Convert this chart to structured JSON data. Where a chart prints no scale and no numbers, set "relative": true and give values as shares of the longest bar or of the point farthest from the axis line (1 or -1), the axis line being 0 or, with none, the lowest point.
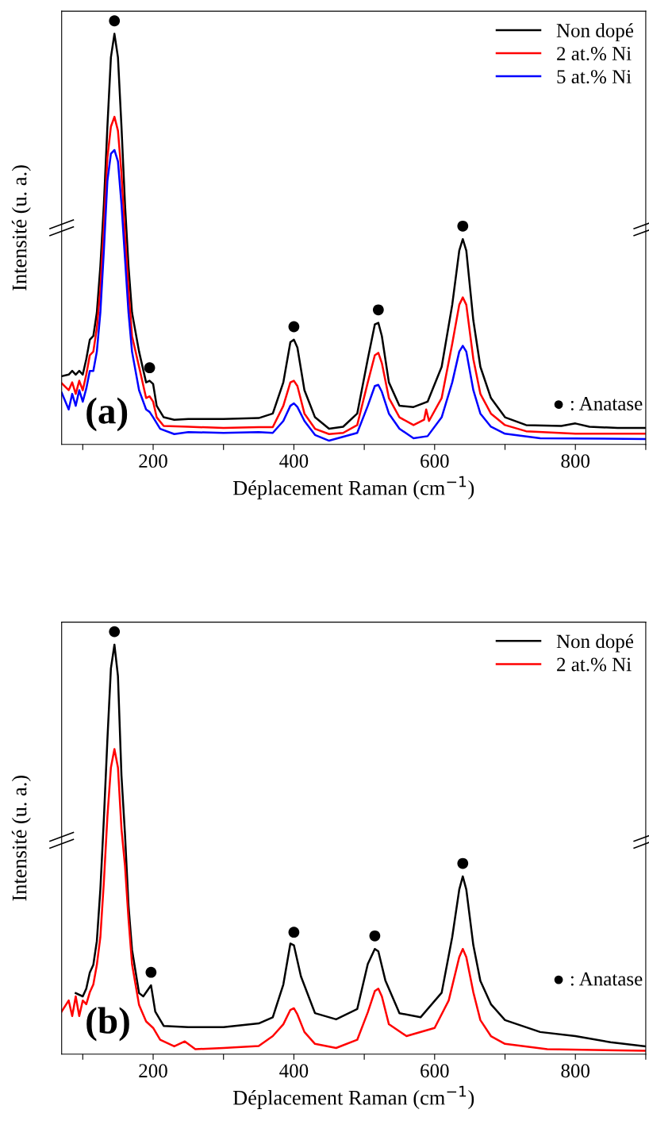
{
  "chart_data": [
    {
      "type": "line",
      "relative": true,
      "xlabel": "Déplacement Raman (cm$^{−1}$)",
      "ylabel": "Intensité (u. a.)",
      "xlim": [
        70,
        900
      ],
      "xticks": [
        {
          "value": 100,
          "label": null
        },
        200,
        {
          "value": 300,
          "label": null
        },
        400,
        {
          "value": 500,
          "label": null
        },
        600,
        {
          "value": 700,
          "label": null
        },
        800,
        {
          "value": 900,
          "label": null
        }
      ],
      "tick_labels": "x",
      "legend": "top right",
      "grid": false,
      "annotations": [
        "(a)",
        "● : Anatase",
        {
          "text": "●",
          "x": 145,
          "y": 1.0
        },
        {
          "text": "●",
          "x": 195,
          "y": 0.155
        },
        {
          "text": "●",
          "x": 400,
          "y": 0.255
        },
        {
          "text": "●",
          "x": 520,
          "y": 0.296
        },
        {
          "text": "●",
          "x": 640,
          "y": 0.5
        }
      ],
      "series": [
        {
          "name": "Non dopé",
          "color": "#000000",
          "x": [
            70,
            80,
            85,
            90,
            95,
            100,
            105,
            110,
            115,
            120,
            125,
            130,
            135,
            140,
            145,
            150,
            155,
            160,
            165,
            170,
            180,
            190,
            195,
            200,
            205,
            215,
            230,
            250,
            300,
            350,
            370,
            385,
            395,
            400,
            405,
            415,
            430,
            450,
            470,
            490,
            505,
            515,
            520,
            525,
            535,
            550,
            570,
            590,
            610,
            625,
            635,
            640,
            645,
            655,
            665,
            680,
            700,
            730,
            780,
            800,
            820,
            860,
            900
          ],
          "values": [
            0.166,
            0.17,
            0.179,
            0.17,
            0.179,
            0.17,
            0.208,
            0.255,
            0.264,
            0.321,
            0.434,
            0.585,
            0.774,
            0.943,
            1.0,
            0.943,
            0.774,
            0.585,
            0.434,
            0.321,
            0.226,
            0.151,
            0.155,
            0.147,
            0.094,
            0.066,
            0.06,
            0.062,
            0.062,
            0.064,
            0.075,
            0.151,
            0.249,
            0.255,
            0.236,
            0.132,
            0.066,
            0.038,
            0.043,
            0.075,
            0.208,
            0.292,
            0.296,
            0.264,
            0.151,
            0.094,
            0.091,
            0.104,
            0.189,
            0.34,
            0.472,
            0.5,
            0.472,
            0.302,
            0.189,
            0.113,
            0.066,
            0.047,
            0.045,
            0.051,
            0.043,
            0.04,
            0.04
          ]
        },
        {
          "name": "2 at.% Ni",
          "color": "#ff0000",
          "x": [
            70,
            80,
            85,
            90,
            95,
            100,
            105,
            110,
            115,
            120,
            125,
            130,
            135,
            140,
            145,
            150,
            155,
            160,
            165,
            170,
            180,
            190,
            195,
            200,
            205,
            215,
            250,
            300,
            350,
            370,
            385,
            395,
            400,
            405,
            415,
            430,
            450,
            470,
            490,
            505,
            515,
            520,
            525,
            535,
            550,
            570,
            585,
            588,
            592,
            610,
            625,
            635,
            640,
            645,
            655,
            665,
            680,
            700,
            730,
            800,
            900
          ],
          "values": [
            0.149,
            0.132,
            0.151,
            0.123,
            0.155,
            0.132,
            0.17,
            0.217,
            0.226,
            0.283,
            0.377,
            0.528,
            0.698,
            0.774,
            0.798,
            0.764,
            0.66,
            0.509,
            0.377,
            0.264,
            0.189,
            0.113,
            0.117,
            0.104,
            0.066,
            0.045,
            0.043,
            0.04,
            0.042,
            0.042,
            0.094,
            0.151,
            0.155,
            0.142,
            0.075,
            0.038,
            0.025,
            0.028,
            0.047,
            0.151,
            0.217,
            0.223,
            0.198,
            0.113,
            0.066,
            0.047,
            0.06,
            0.085,
            0.057,
            0.113,
            0.245,
            0.34,
            0.358,
            0.34,
            0.208,
            0.123,
            0.075,
            0.047,
            0.032,
            0.026,
            0.026
          ]
        },
        {
          "name": "5 at.% Ni",
          "color": "#0000ff",
          "x": [
            70,
            80,
            85,
            90,
            95,
            100,
            105,
            110,
            115,
            120,
            125,
            130,
            135,
            140,
            145,
            150,
            155,
            160,
            165,
            170,
            180,
            190,
            195,
            200,
            210,
            230,
            250,
            300,
            350,
            370,
            385,
            395,
            400,
            405,
            415,
            430,
            450,
            490,
            505,
            515,
            520,
            525,
            535,
            550,
            570,
            590,
            610,
            625,
            635,
            640,
            645,
            655,
            665,
            680,
            700,
            750,
            900
          ],
          "values": [
            0.126,
            0.085,
            0.123,
            0.094,
            0.132,
            0.104,
            0.136,
            0.179,
            0.179,
            0.226,
            0.321,
            0.472,
            0.642,
            0.708,
            0.717,
            0.689,
            0.585,
            0.453,
            0.321,
            0.226,
            0.132,
            0.085,
            0.079,
            0.066,
            0.038,
            0.025,
            0.03,
            0.028,
            0.03,
            0.028,
            0.057,
            0.094,
            0.1,
            0.091,
            0.057,
            0.023,
            0.009,
            0.028,
            0.094,
            0.142,
            0.145,
            0.128,
            0.075,
            0.038,
            0.015,
            0.02,
            0.066,
            0.151,
            0.226,
            0.24,
            0.226,
            0.132,
            0.075,
            0.043,
            0.026,
            0.015,
            0.013
          ]
        }
      ]
    },
    {
      "type": "line",
      "relative": true,
      "xlabel": "Déplacement Raman (cm$^{−1}$)",
      "ylabel": "Intensité (u. a.)",
      "xlim": [
        70,
        900
      ],
      "xticks": [
        {
          "value": 100,
          "label": null
        },
        200,
        {
          "value": 300,
          "label": null
        },
        400,
        {
          "value": 500,
          "label": null
        },
        600,
        {
          "value": 700,
          "label": null
        },
        800,
        {
          "value": 900,
          "label": null
        }
      ],
      "tick_labels": "x",
      "legend": "top right",
      "grid": false,
      "annotations": [
        "(b)",
        "● : Anatase",
        {
          "text": "●",
          "x": 145,
          "y": 1.0
        },
        {
          "text": "●",
          "x": 197,
          "y": 0.168
        },
        {
          "text": "●",
          "x": 400,
          "y": 0.266
        },
        {
          "text": "●",
          "x": 515,
          "y": 0.257
        },
        {
          "text": "●",
          "x": 640,
          "y": 0.434
        }
      ],
      "series": [
        {
          "name": "Non dopé",
          "color": "#000000",
          "x": [
            90,
            100,
            105,
            110,
            115,
            120,
            125,
            130,
            135,
            140,
            145,
            150,
            155,
            160,
            165,
            170,
            180,
            186,
            197,
            203,
            215,
            250,
            300,
            350,
            370,
            385,
            395,
            400,
            410,
            430,
            460,
            490,
            505,
            515,
            520,
            530,
            550,
            580,
            610,
            625,
            635,
            640,
            645,
            655,
            665,
            680,
            700,
            750,
            800,
            850,
            900
          ],
          "values": [
            0.149,
            0.141,
            0.16,
            0.199,
            0.218,
            0.276,
            0.402,
            0.575,
            0.768,
            0.942,
            1.0,
            0.923,
            0.68,
            0.537,
            0.363,
            0.255,
            0.149,
            0.141,
            0.168,
            0.104,
            0.069,
            0.066,
            0.066,
            0.075,
            0.09,
            0.17,
            0.27,
            0.266,
            0.19,
            0.1,
            0.085,
            0.11,
            0.22,
            0.257,
            0.251,
            0.18,
            0.1,
            0.09,
            0.15,
            0.286,
            0.402,
            0.434,
            0.402,
            0.266,
            0.179,
            0.122,
            0.083,
            0.054,
            0.044,
            0.029,
            0.019
          ]
        },
        {
          "name": "2 at.% Ni",
          "color": "#ff0000",
          "x": [
            70,
            80,
            85,
            90,
            95,
            100,
            105,
            110,
            115,
            120,
            125,
            130,
            135,
            140,
            145,
            150,
            155,
            160,
            165,
            170,
            180,
            190,
            200,
            210,
            230,
            245,
            260,
            300,
            350,
            370,
            385,
            395,
            400,
            405,
            415,
            430,
            460,
            490,
            505,
            515,
            520,
            525,
            535,
            560,
            600,
            620,
            635,
            640,
            645,
            655,
            665,
            680,
            700,
            760,
            900
          ],
          "values": [
            0.104,
            0.131,
            0.093,
            0.141,
            0.093,
            0.131,
            0.122,
            0.151,
            0.17,
            0.218,
            0.286,
            0.421,
            0.58,
            0.7,
            0.745,
            0.7,
            0.55,
            0.46,
            0.33,
            0.22,
            0.12,
            0.08,
            0.064,
            0.035,
            0.019,
            0.031,
            0.012,
            0.015,
            0.02,
            0.044,
            0.073,
            0.108,
            0.112,
            0.097,
            0.054,
            0.025,
            0.015,
            0.035,
            0.102,
            0.154,
            0.16,
            0.141,
            0.073,
            0.044,
            0.064,
            0.131,
            0.237,
            0.257,
            0.237,
            0.151,
            0.083,
            0.044,
            0.025,
            0.012,
            0.008
          ]
        }
      ]
    }
  ]
}
